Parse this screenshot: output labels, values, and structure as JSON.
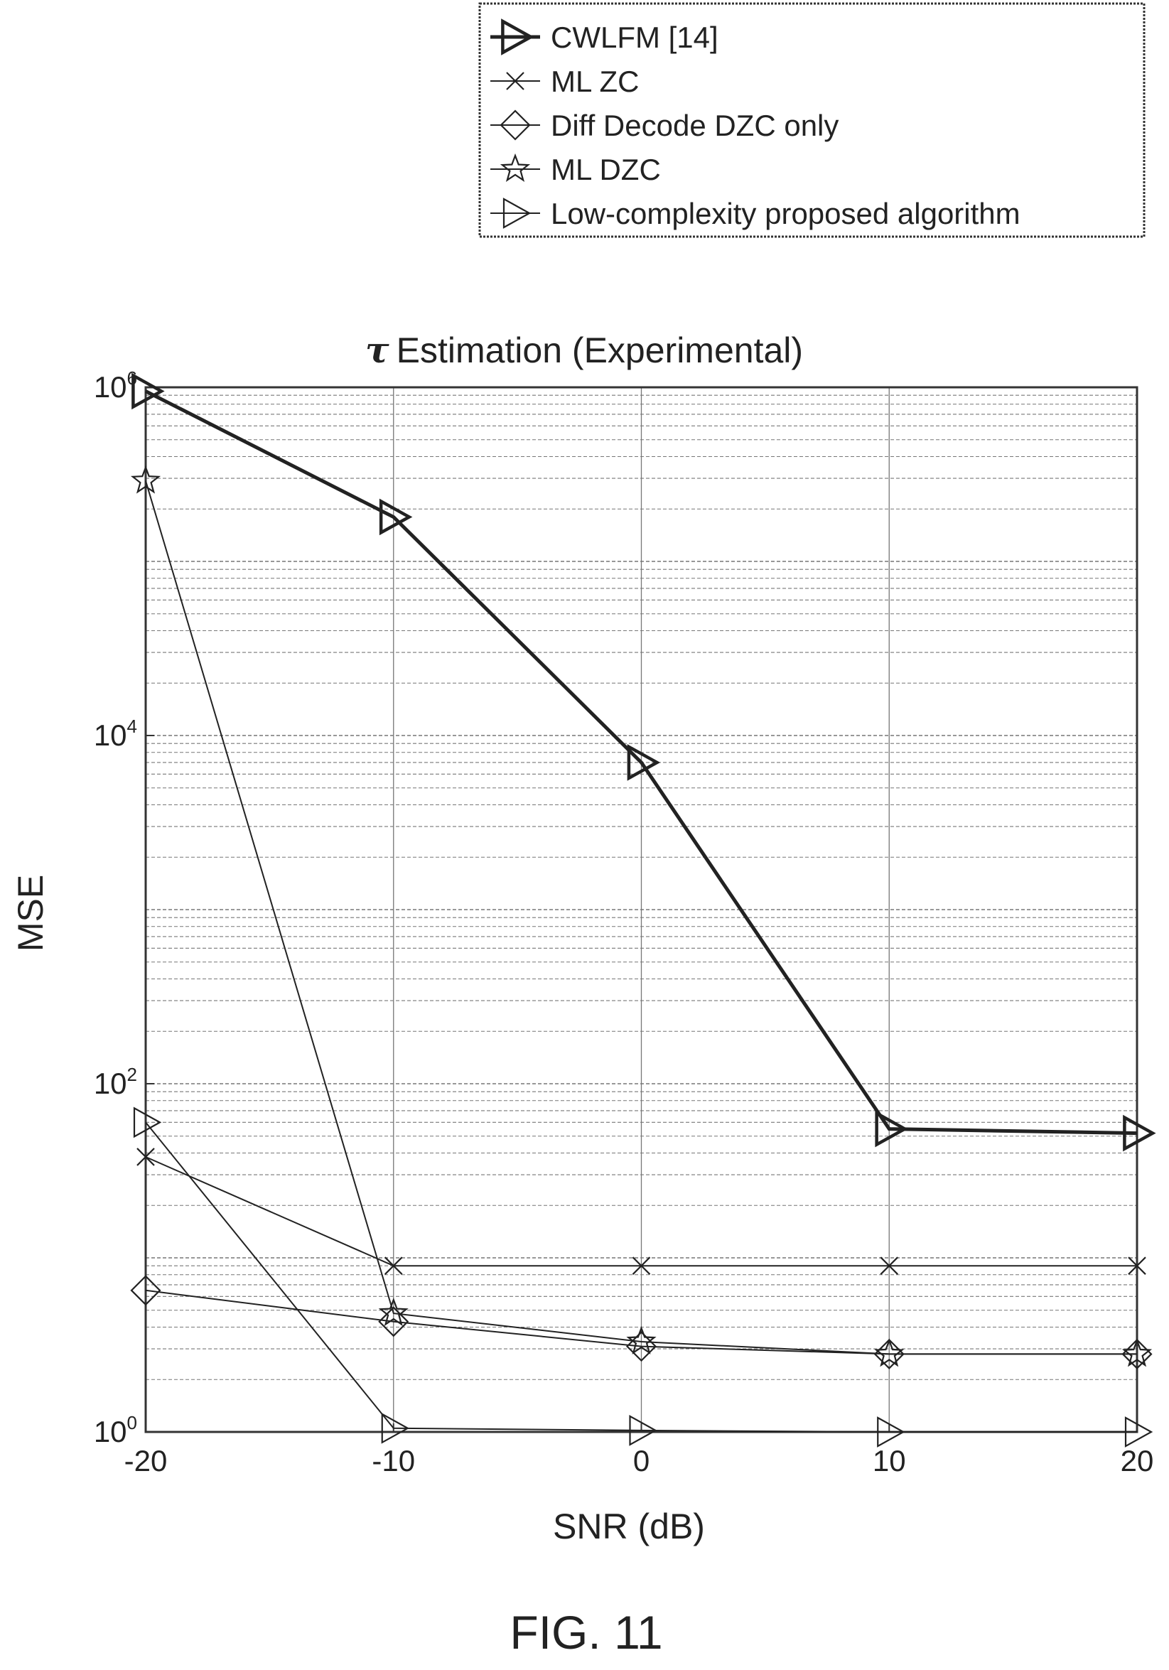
{
  "chart_data": {
    "type": "line",
    "title_symbol": "τ",
    "title": "Estimation (Experimental)",
    "xlabel": "SNR (dB)",
    "ylabel": "MSE",
    "yscale": "log",
    "xlim": [
      -20,
      20
    ],
    "ylim": [
      1,
      1000000
    ],
    "xticks": [
      -20,
      -10,
      0,
      10,
      20
    ],
    "xtick_labels": [
      "-20",
      "-10",
      "0",
      "10",
      "20"
    ],
    "yticks": [
      1,
      100,
      10000,
      1000000
    ],
    "ytick_labels": [
      {
        "base": "10",
        "exp": "0"
      },
      {
        "base": "10",
        "exp": "2"
      },
      {
        "base": "10",
        "exp": "4"
      },
      {
        "base": "10",
        "exp": "6"
      }
    ],
    "grid": true,
    "legend_position": "above plot, right",
    "x": [
      -20,
      -10,
      0,
      10,
      20
    ],
    "series": [
      {
        "name": "CWLFM [14]",
        "marker": "triangle-right",
        "bold": true,
        "values": [
          950000,
          180000,
          7000,
          55,
          52
        ]
      },
      {
        "name": "ML ZC",
        "marker": "x",
        "bold": false,
        "values": [
          38,
          9,
          9,
          9,
          9
        ]
      },
      {
        "name": "Diff Decode DZC only",
        "marker": "diamond",
        "bold": false,
        "values": [
          6.5,
          4.3,
          3.1,
          2.8,
          2.8
        ]
      },
      {
        "name": "ML DZC",
        "marker": "star",
        "bold": false,
        "values": [
          290000,
          4.8,
          3.3,
          2.8,
          2.8
        ]
      },
      {
        "name": "Low-complexity proposed algorithm",
        "marker": "triangle-right",
        "bold": false,
        "values": [
          60,
          1.05,
          1.02,
          1.0,
          1.0
        ]
      }
    ]
  },
  "figure_caption": "FIG. 11"
}
